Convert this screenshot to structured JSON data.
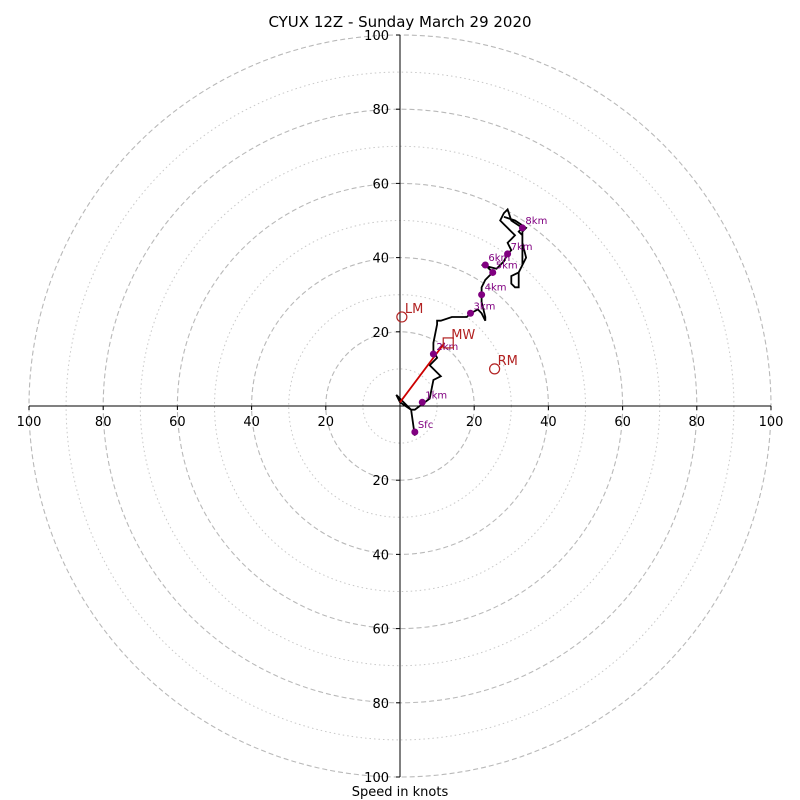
{
  "chart_data": {
    "type": "hodograph",
    "title": "CYUX 12Z - Sunday March 29 2020",
    "xlabel": "Speed in knots",
    "ylabel": "",
    "xlim": [
      -100,
      100
    ],
    "ylim": [
      -100,
      100
    ],
    "units": "knots",
    "rings_dashed": [
      20,
      40,
      60,
      80,
      100
    ],
    "rings_dotted": [
      10,
      30,
      50,
      70,
      90
    ],
    "x_ticks": [
      "100",
      "80",
      "60",
      "40",
      "20",
      "20",
      "40",
      "60",
      "80",
      "100"
    ],
    "x_tick_values": [
      -100,
      -80,
      -60,
      -40,
      -20,
      20,
      40,
      60,
      80,
      100
    ],
    "y_ticks": [
      "100",
      "80",
      "60",
      "40",
      "20",
      "20",
      "40",
      "60",
      "80",
      "100"
    ],
    "y_tick_values": [
      100,
      80,
      60,
      40,
      20,
      -20,
      -40,
      -60,
      -80,
      -100
    ],
    "series": [
      {
        "kind": "trace",
        "color": "#000000",
        "points": [
          [
            4,
            -8
          ],
          [
            3,
            -1
          ],
          [
            0,
            1
          ],
          [
            -1,
            3
          ],
          [
            3,
            -1
          ],
          [
            4,
            -1
          ],
          [
            8,
            2
          ],
          [
            9,
            7
          ],
          [
            11,
            8
          ],
          [
            8,
            11
          ],
          [
            10,
            13
          ],
          [
            9,
            15
          ],
          [
            9,
            17
          ],
          [
            10,
            22
          ],
          [
            10,
            23
          ],
          [
            11,
            23
          ],
          [
            14,
            24
          ],
          [
            16,
            24
          ],
          [
            18,
            24
          ],
          [
            19,
            25
          ],
          [
            21,
            26
          ],
          [
            22,
            25
          ],
          [
            23,
            23
          ],
          [
            23,
            24
          ],
          [
            22,
            28
          ],
          [
            22,
            30
          ],
          [
            22,
            32
          ],
          [
            23,
            34
          ],
          [
            24,
            35
          ],
          [
            25,
            36
          ],
          [
            24,
            37
          ],
          [
            23,
            38
          ],
          [
            22,
            38
          ],
          [
            26,
            37
          ],
          [
            28,
            39
          ],
          [
            29,
            41
          ],
          [
            30,
            42
          ],
          [
            29,
            44
          ],
          [
            30,
            45
          ],
          [
            31,
            46
          ],
          [
            30,
            47
          ],
          [
            29,
            48
          ],
          [
            28,
            49
          ],
          [
            27,
            50
          ],
          [
            28,
            52
          ],
          [
            29,
            53
          ],
          [
            30,
            50
          ],
          [
            33,
            48
          ],
          [
            32,
            47
          ],
          [
            33,
            46
          ],
          [
            33,
            44
          ],
          [
            33,
            42
          ],
          [
            33,
            40
          ],
          [
            33,
            38
          ],
          [
            32,
            36
          ],
          [
            30,
            35
          ],
          [
            30,
            33
          ],
          [
            31,
            32
          ],
          [
            32,
            32
          ],
          [
            32,
            35
          ],
          [
            32,
            36
          ],
          [
            33,
            38
          ],
          [
            34,
            40
          ],
          [
            33,
            44
          ],
          [
            33,
            47
          ],
          [
            34,
            48
          ],
          [
            31,
            50
          ],
          [
            28,
            51
          ]
        ]
      },
      {
        "kind": "height-markers",
        "color": "#800080",
        "points": [
          {
            "label": "Sfc",
            "u": 4,
            "v": -7
          },
          {
            "label": "1km",
            "u": 6,
            "v": 1
          },
          {
            "label": "2km",
            "u": 9,
            "v": 14
          },
          {
            "label": "3km",
            "u": 19,
            "v": 25
          },
          {
            "label": "4km",
            "u": 22,
            "v": 30
          },
          {
            "label": "5km",
            "u": 25,
            "v": 36
          },
          {
            "label": "6km",
            "u": 23,
            "v": 38
          },
          {
            "label": "7km",
            "u": 29,
            "v": 41
          },
          {
            "label": "8km",
            "u": 33,
            "v": 48
          }
        ]
      },
      {
        "kind": "shear-vector",
        "color": "#cc0000",
        "from": [
          0,
          1
        ],
        "to": [
          12,
          17
        ]
      }
    ],
    "motion_markers": [
      {
        "label": "LM",
        "u": 0.5,
        "v": 24,
        "shape": "circle",
        "color": "#b22222"
      },
      {
        "label": "MW",
        "u": 13,
        "v": 17,
        "shape": "square",
        "color": "#b22222"
      },
      {
        "label": "RM",
        "u": 25.5,
        "v": 10,
        "shape": "circle",
        "color": "#b22222"
      }
    ]
  }
}
